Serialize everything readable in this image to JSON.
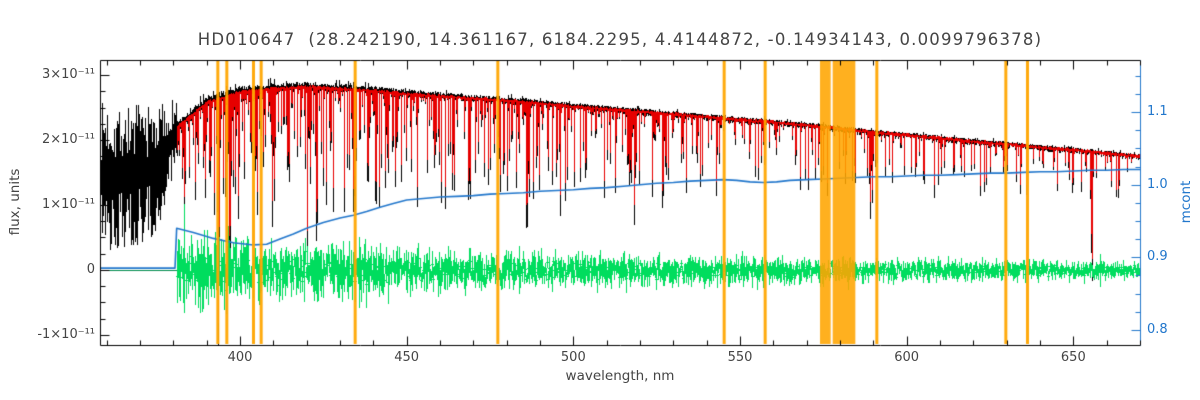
{
  "chart_data": {
    "type": "line",
    "title": "HD010647  (28.242190, 14.361167, 6184.2295, 4.4144872, -0.14934143, 0.0099796378)",
    "xlabel": "wavelength, nm",
    "ylabel_left": "flux, units",
    "ylabel_right": "mcont",
    "x_axis": {
      "range_nm": [
        358,
        670
      ],
      "major_ticks": [
        400,
        450,
        500,
        550,
        600,
        650
      ],
      "tick_labels": [
        "400",
        "450",
        "500",
        "550",
        "600",
        "650"
      ],
      "minor_step": 10
    },
    "flux_axis": {
      "range_1e11": [
        -1.154,
        3.231
      ],
      "major_ticks_1e11": [
        -1,
        0,
        1,
        2,
        3
      ],
      "tick_labels": [
        "-1×10⁻¹¹",
        "0",
        "1×10⁻¹¹",
        "2×10⁻¹¹",
        "3×10⁻¹¹"
      ],
      "minor_step_1e11": 0.25
    },
    "mcont_axis": {
      "range": [
        0.779,
        1.172
      ],
      "major_ticks": [
        0.8,
        0.9,
        1.0,
        1.1
      ],
      "tick_labels": [
        "0.8",
        "0.9",
        "1.0",
        "1.1"
      ],
      "minor_step": 0.025
    },
    "colors": {
      "observed": "#000000",
      "model": "#e60000",
      "residual": "#00dd5e",
      "continuum": "#2277cc",
      "mask": "#ffa500",
      "axis": "#000000",
      "text": "#454545"
    },
    "series": {
      "observed": {
        "name": "observed spectrum",
        "lambda_start_nm": 358,
        "lambda_end_nm": 670
      },
      "model": {
        "name": "model spectrum",
        "lambda_start_nm": 381,
        "lambda_end_nm": 670,
        "continuum_points": [
          [
            381,
            2.2
          ],
          [
            390,
            2.58
          ],
          [
            400,
            2.74
          ],
          [
            410,
            2.79
          ],
          [
            420,
            2.82
          ],
          [
            430,
            2.79
          ],
          [
            440,
            2.76
          ],
          [
            450,
            2.71
          ],
          [
            460,
            2.68
          ],
          [
            470,
            2.64
          ],
          [
            480,
            2.61
          ],
          [
            490,
            2.57
          ],
          [
            500,
            2.52
          ],
          [
            510,
            2.48
          ],
          [
            520,
            2.44
          ],
          [
            530,
            2.4
          ],
          [
            540,
            2.36
          ],
          [
            550,
            2.31
          ],
          [
            560,
            2.28
          ],
          [
            570,
            2.23
          ],
          [
            580,
            2.18
          ],
          [
            590,
            2.12
          ],
          [
            600,
            2.08
          ],
          [
            610,
            2.03
          ],
          [
            620,
            1.98
          ],
          [
            630,
            1.94
          ],
          [
            640,
            1.89
          ],
          [
            650,
            1.85
          ],
          [
            660,
            1.8
          ],
          [
            670,
            1.75
          ]
        ]
      },
      "residual": {
        "name": "observed - model residual",
        "center": 0
      },
      "mcont": {
        "name": "continuum scale (mcont)",
        "points": [
          [
            358,
            0.885
          ],
          [
            380.5,
            0.885
          ],
          [
            381,
            0.94
          ],
          [
            386,
            0.934
          ],
          [
            392,
            0.926
          ],
          [
            398,
            0.92
          ],
          [
            404,
            0.917
          ],
          [
            408,
            0.918
          ],
          [
            412,
            0.925
          ],
          [
            416,
            0.932
          ],
          [
            420,
            0.94
          ],
          [
            425,
            0.948
          ],
          [
            430,
            0.954
          ],
          [
            434,
            0.958
          ],
          [
            438,
            0.963
          ],
          [
            442,
            0.969
          ],
          [
            446,
            0.974
          ],
          [
            450,
            0.979
          ],
          [
            455,
            0.981
          ],
          [
            460,
            0.983
          ],
          [
            465,
            0.984
          ],
          [
            470,
            0.985
          ],
          [
            475,
            0.987
          ],
          [
            480,
            0.988
          ],
          [
            485,
            0.989
          ],
          [
            490,
            0.991
          ],
          [
            495,
            0.992
          ],
          [
            500,
            0.993
          ],
          [
            505,
            0.995
          ],
          [
            510,
            0.996
          ],
          [
            515,
            0.998
          ],
          [
            520,
            1.0
          ],
          [
            525,
            1.002
          ],
          [
            530,
            1.003
          ],
          [
            535,
            1.005
          ],
          [
            540,
            1.006
          ],
          [
            545,
            1.007
          ],
          [
            549,
            1.006
          ],
          [
            553,
            1.004
          ],
          [
            557,
            1.003
          ],
          [
            561,
            1.004
          ],
          [
            565,
            1.006
          ],
          [
            570,
            1.007
          ],
          [
            575,
            1.008
          ],
          [
            580,
            1.009
          ],
          [
            585,
            1.01
          ],
          [
            590,
            1.011
          ],
          [
            595,
            1.011
          ],
          [
            600,
            1.012
          ],
          [
            605,
            1.013
          ],
          [
            610,
            1.013
          ],
          [
            615,
            1.014
          ],
          [
            620,
            1.015
          ],
          [
            625,
            1.016
          ],
          [
            630,
            1.016
          ],
          [
            635,
            1.017
          ],
          [
            640,
            1.018
          ],
          [
            645,
            1.018
          ],
          [
            650,
            1.019
          ],
          [
            655,
            1.02
          ],
          [
            660,
            1.02
          ],
          [
            665,
            1.021
          ],
          [
            670,
            1.021
          ]
        ]
      }
    },
    "strong_lines": [
      [
        393.4,
        0.9,
        0.5
      ],
      [
        396.9,
        0.85,
        0.5
      ],
      [
        404.6,
        0.45,
        0.25
      ],
      [
        410.2,
        0.6,
        0.35
      ],
      [
        414.1,
        0.35,
        0.3
      ],
      [
        420.2,
        0.35,
        0.25
      ],
      [
        422.7,
        0.5,
        0.3
      ],
      [
        427.1,
        0.4,
        0.25
      ],
      [
        434.0,
        0.7,
        0.4
      ],
      [
        438.4,
        0.5,
        0.35
      ],
      [
        440.5,
        0.35,
        0.3
      ],
      [
        447.0,
        0.3,
        0.25
      ],
      [
        453.1,
        0.3,
        0.25
      ],
      [
        458.0,
        0.28,
        0.25
      ],
      [
        486.1,
        0.72,
        0.4
      ],
      [
        489.1,
        0.3,
        0.25
      ],
      [
        495.8,
        0.28,
        0.25
      ],
      [
        516.7,
        0.45,
        0.35
      ],
      [
        517.3,
        0.42,
        0.3
      ],
      [
        518.4,
        0.45,
        0.3
      ],
      [
        526.9,
        0.4,
        0.25
      ],
      [
        532.8,
        0.32,
        0.25
      ],
      [
        537.1,
        0.28,
        0.22
      ],
      [
        543.0,
        0.28,
        0.22
      ],
      [
        552.8,
        0.3,
        0.22
      ],
      [
        560.7,
        0.25,
        0.22
      ],
      [
        588.9,
        0.55,
        0.3
      ],
      [
        589.6,
        0.5,
        0.3
      ],
      [
        610.3,
        0.25,
        0.22
      ],
      [
        616.2,
        0.28,
        0.22
      ],
      [
        625.0,
        0.22,
        0.2
      ],
      [
        630.0,
        0.24,
        0.2
      ],
      [
        644.0,
        0.22,
        0.2
      ],
      [
        649.9,
        0.25,
        0.2
      ],
      [
        655.5,
        1.15,
        0.3
      ]
    ],
    "mask_regions_nm": [
      [
        392.9,
        393.8
      ],
      [
        395.6,
        396.5
      ],
      [
        403.6,
        404.5
      ],
      [
        405.9,
        406.8
      ],
      [
        434.1,
        435.0
      ],
      [
        476.9,
        477.8
      ],
      [
        544.8,
        545.7
      ],
      [
        557.1,
        558.0
      ],
      [
        574.0,
        577.2
      ],
      [
        577.8,
        584.6
      ],
      [
        590.6,
        591.5
      ],
      [
        629.3,
        630.2
      ],
      [
        635.8,
        636.7
      ]
    ],
    "noisy_blue_end": {
      "lambda_end_nm": 381,
      "center_points": [
        [
          358,
          1.45
        ],
        [
          368,
          1.45
        ],
        [
          374,
          1.55
        ],
        [
          378,
          1.8
        ],
        [
          381,
          2.2
        ]
      ],
      "half_amp_points": [
        [
          358,
          1.15
        ],
        [
          368,
          1.12
        ],
        [
          374,
          1.0
        ],
        [
          378,
          0.8
        ],
        [
          381,
          0.45
        ]
      ]
    },
    "weak_line_density": [
      [
        383,
        0.85
      ],
      [
        420,
        0.8
      ],
      [
        460,
        0.65
      ],
      [
        500,
        0.55
      ],
      [
        550,
        0.45
      ],
      [
        600,
        0.4
      ],
      [
        670,
        0.35
      ]
    ],
    "weak_line_maxdepth": [
      [
        383,
        0.75
      ],
      [
        430,
        0.7
      ],
      [
        480,
        0.6
      ],
      [
        540,
        0.5
      ],
      [
        600,
        0.45
      ],
      [
        670,
        0.4
      ]
    ],
    "top_fuzz_scale": [
      [
        381,
        1.6
      ],
      [
        430,
        1.1
      ],
      [
        480,
        0.8
      ],
      [
        560,
        0.6
      ],
      [
        670,
        0.5
      ]
    ],
    "residual_amp_points": [
      [
        381,
        0.45
      ],
      [
        390,
        0.46
      ],
      [
        400,
        0.42
      ],
      [
        410,
        0.4
      ],
      [
        420,
        0.38
      ],
      [
        430,
        0.38
      ],
      [
        440,
        0.34
      ],
      [
        450,
        0.3
      ],
      [
        460,
        0.28
      ],
      [
        470,
        0.26
      ],
      [
        480,
        0.24
      ],
      [
        490,
        0.23
      ],
      [
        500,
        0.22
      ],
      [
        510,
        0.22
      ],
      [
        520,
        0.21
      ],
      [
        530,
        0.21
      ],
      [
        540,
        0.2
      ],
      [
        550,
        0.19
      ],
      [
        560,
        0.18
      ],
      [
        570,
        0.17
      ],
      [
        580,
        0.17
      ],
      [
        590,
        0.16
      ],
      [
        600,
        0.15
      ],
      [
        610,
        0.15
      ],
      [
        620,
        0.14
      ],
      [
        630,
        0.14
      ],
      [
        640,
        0.13
      ],
      [
        650,
        0.13
      ],
      [
        660,
        0.12
      ],
      [
        670,
        0.12
      ]
    ],
    "render_seed": 7
  }
}
